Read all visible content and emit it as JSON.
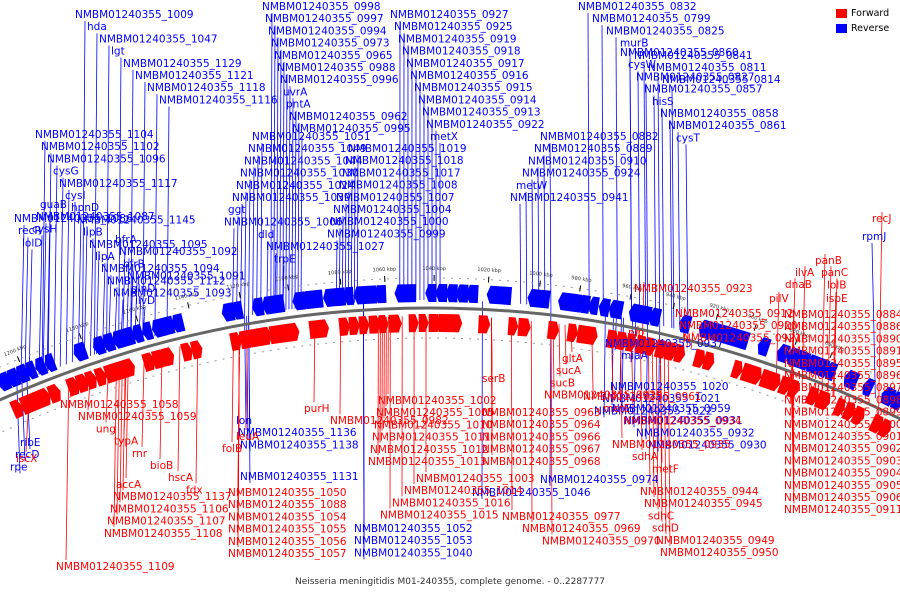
{
  "caption": "Neisseria meningitidis M01-240355, complete genome. - 0..2287777",
  "legend": {
    "forward_label": "Forward",
    "reverse_label": "Reverse",
    "forward_color": "#ff0000",
    "reverse_color": "#0000ff"
  },
  "ticks": [
    "1200 kbp",
    "1180 kbp",
    "1160 kbp",
    "1140 kbp",
    "1120 kbp",
    "1100 kbp",
    "1080 kbp",
    "1060 kbp",
    "1040 kbp",
    "1020 kbp",
    "1000 kbp",
    "980 kbp",
    "960 kbp",
    "940 kbp",
    "920 kbp",
    "900 kbp",
    "880 kbp",
    "860 kbp"
  ],
  "reverse_labels": [
    "NMBM01240355_0832",
    "NMBM01240355_0799",
    "NMBM01240355_0825",
    "murB",
    "NMBM01240355_0841",
    "NMBM01240355_0811",
    "NMBM01240355_0814",
    "NMBM01240355_0860",
    "cysW",
    "NMBM01240355_0827",
    "NMBM01240355_0857",
    "hisS",
    "NMBM01240355_0858",
    "NMBM01240355_0861",
    "cysT",
    "NMBM01240355_0882",
    "NMBM01240355_0889",
    "NMBM01240355_0910",
    "NMBM01240355_0924",
    "metW",
    "NMBM01240355_0941",
    "NMBM01240355_0927",
    "NMBM01240355_0925",
    "NMBM01240355_0919",
    "NMBM01240355_0918",
    "NMBM01240355_0917",
    "NMBM01240355_0916",
    "NMBM01240355_0915",
    "NMBM01240355_0914",
    "NMBM01240355_0913",
    "NMBM01240355_0922",
    "metX",
    "NMBM01240355_1019",
    "NMBM01240355_1018",
    "NMBM01240355_1017",
    "NMBM01240355_1008",
    "NMBM01240355_1007",
    "NMBM01240355_1004",
    "NMBM01240355_1000",
    "NMBM01240355_0999",
    "NMBM01240355_0998",
    "NMBM01240355_0997",
    "NMBM01240355_0994",
    "NMBM01240355_0973",
    "NMBM01240355_0965",
    "NMBM01240355_0988",
    "NMBM01240355_0996",
    "uvrA",
    "pntA",
    "NMBM01240355_0962",
    "NMBM01240355_0995",
    "NMBM01240355_1051",
    "NMBM01240355_1049",
    "NMBM01240355_1044",
    "NMBM01240355_1030",
    "NMBM01240355_1024",
    "NMBM01240355_1039",
    "ggt",
    "NMBM01240355_1006",
    "dld",
    "NMBM01240355_1027",
    "trpE",
    "NMBM01240355_1009",
    "hda",
    "NMBM01240355_1047",
    "lgt",
    "NMBM01240355_1129",
    "NMBM01240355_1121",
    "NMBM01240355_1118",
    "NMBM01240355_1116",
    "NMBM01240355_1104",
    "NMBM01240355_1102",
    "NMBM01240355_1096",
    "cysG",
    "NMBM01240355_1117",
    "cysI",
    "hpnD",
    "NMBM01240355_1145",
    "lipB",
    "NMBM01240355_1095",
    "lipA",
    "NMBM01240355_1094",
    "NMBM01240355_1112",
    "NMBM01240355_1093",
    "bfrA",
    "NMBM01240355_1092",
    "bfrB",
    "NMBM01240355_1091",
    "glnD",
    "ilvD",
    "guaB",
    "NMBM01240355_1087",
    "cysH",
    "NMBM01240355_1086",
    "recR",
    "lolD",
    "ribE",
    "recD",
    "rpe",
    "lon",
    "NMBM01240355_1136",
    "NMBM01240355_1138",
    "NMBM01240355_1131",
    "NMBM01240355_1046",
    "NMBM01240355_1052",
    "NMBM01240355_1053",
    "NMBM01240355_1040",
    "NMBM01240355_0974",
    "NMBM01240355_1020",
    "NMBM01240355_1021",
    "NMBM01240355_1022",
    "NMBM01240355_0959",
    "NMBM01240355_0931",
    "NMBM01240355_0932",
    "NMBM01240355_0930",
    "NMBM01240355_0937",
    "miaA",
    "rpmJ",
    "efp",
    "dapA",
    "dcd"
  ],
  "forward_labels": [
    "recJ",
    "panB",
    "panC",
    "lolB",
    "ilvA",
    "dnaB",
    "ispE",
    "pilV",
    "NMBM01240355_0923",
    "NMBM01240355_0912",
    "NMBM01240355_0920",
    "NMBM01240355_0921",
    "NMBM01240355_0884",
    "NMBM01240355_0886",
    "NMBM01240355_0890",
    "NMBM01240355_0891",
    "NMBM01240355_0895",
    "NMBM01240355_0896",
    "NMBM01240355_0897",
    "NMBM01240355_0898",
    "NMBM01240355_0899",
    "NMBM01240355_0900",
    "NMBM01240355_0901",
    "NMBM01240355_0902",
    "NMBM01240355_0903",
    "NMBM01240355_0904",
    "NMBM01240355_0905",
    "NMBM01240355_0906",
    "NMBM01240355_0911",
    "pip",
    "gltA",
    "sucA",
    "sucB",
    "NMBM01240355_0929",
    "NMBM01240355_0961",
    "metE",
    "NMBM01240355_0934",
    "NMBM01240355_0935",
    "sdhA",
    "metF",
    "NMBM01240355_0944",
    "NMBM01240355_0945",
    "sdhC",
    "sdhD",
    "NMBM01240355_0949",
    "NMBM01240355_0950",
    "serB",
    "NMBM01240355_1002",
    "NMBM01240355_1005",
    "NMBM01240355_1010",
    "NMBM01240355_1011",
    "NMBM01240355_1012",
    "NMBM01240355_1013",
    "NMBM01240355_0963",
    "NMBM01240355_0964",
    "NMBM01240355_0966",
    "NMBM01240355_0967",
    "NMBM01240355_0968",
    "NMBM01240355_1003",
    "NMBM01240355_1014",
    "NMBM01240355_1016",
    "NMBM01240355_1015",
    "NMBM01240355_0977",
    "NMBM01240355_0969",
    "NMBM01240355_0970",
    "purH",
    "NMBM01240355_0982",
    "leuA",
    "folB",
    "NMBM01240355_1050",
    "NMBM01240355_1088",
    "NMBM01240355_1054",
    "NMBM01240355_1055",
    "NMBM01240355_1056",
    "NMBM01240355_1057",
    "NMBM01240355_1058",
    "NMBM01240355_1059",
    "ung",
    "typA",
    "rnr",
    "bioB",
    "hscA",
    "fdx",
    "iscX",
    "accA",
    "NMBM01240355_1137",
    "NMBM01240355_1106",
    "NMBM01240355_1107",
    "NMBM01240355_1108",
    "NMBM01240355_1109",
    "mpl",
    "NMBM01240355_1113",
    "NMBM01240355_1122"
  ]
}
